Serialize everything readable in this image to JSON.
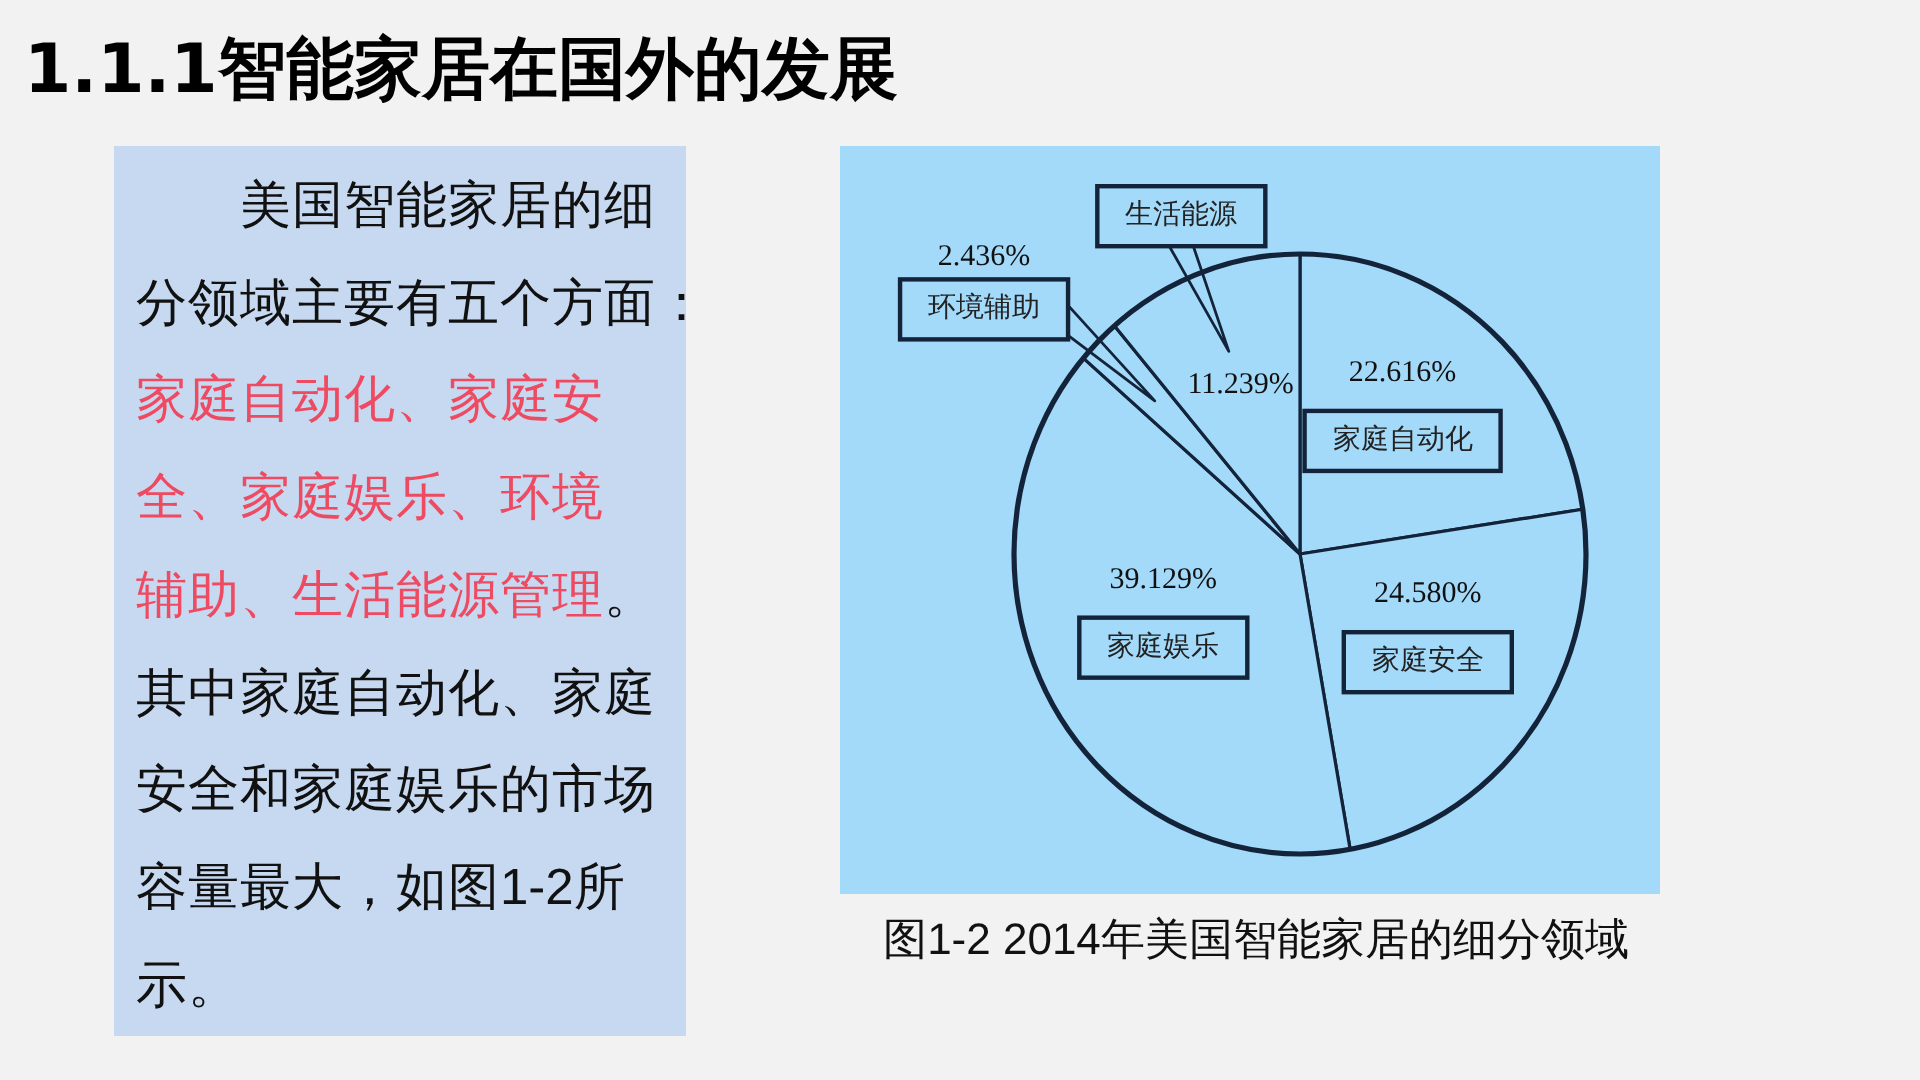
{
  "chart_data": {
    "type": "pie",
    "title": "1.1.1智能家居在国外的发展",
    "categories": [
      "家庭自动化",
      "家庭安全",
      "家庭娱乐",
      "环境辅助",
      "生活能源"
    ],
    "values": [
      22.616,
      24.58,
      39.129,
      2.436,
      11.239
    ],
    "colors": [
      "#a3d9f9",
      "#a3d9f9",
      "#a3d9f9",
      "#a3d9f9",
      "#a3d9f9"
    ],
    "value_labels": [
      "22.616%",
      "24.580%",
      "39.129%",
      "2.436%",
      "11.239%"
    ],
    "annotations": [
      "美国智能家居的细分领域主要有五个方面：",
      "家庭自动化、家庭安全、家庭娱乐、环境辅助、生活能源管理",
      "。",
      "其中家庭自动化、家庭安全和家庭娱乐的市场容量最大，如图1-2所示。",
      "图1-2 2014年美国智能家居的细分领域"
    ]
  }
}
